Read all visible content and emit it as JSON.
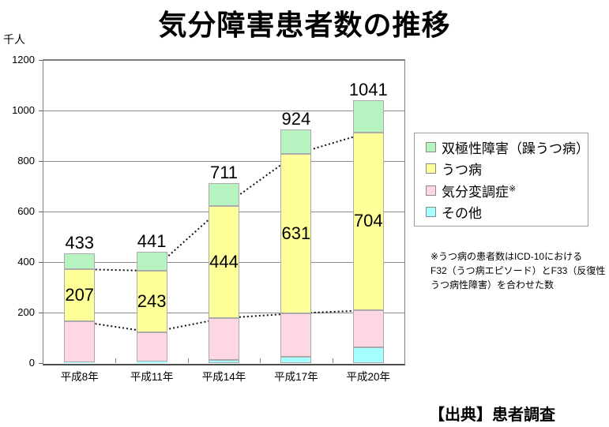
{
  "title": "気分障害患者数の推移",
  "y_axis": {
    "unit": "千人",
    "ticks": [
      0,
      200,
      400,
      600,
      800,
      1000,
      1200
    ],
    "max": 1200
  },
  "note": "※うつ病の患者数はICD-10における\nF32（うつ病エピソード）とF33（反復性\nうつ病性障害）を合わせた数",
  "source": "【出典】患者調査",
  "legend": [
    {
      "label": "双極性障害（躁うつ病）",
      "color": "#B7F3C0"
    },
    {
      "label": "うつ病",
      "color": "#FFFF99"
    },
    {
      "label": "気分変調症",
      "sup": "※",
      "color": "#FFD7E3"
    },
    {
      "label": "その他",
      "color": "#A5FEFF"
    }
  ],
  "chart_data": {
    "type": "bar",
    "stacked": true,
    "title": "気分障害患者数の推移",
    "ylabel": "千人",
    "ylim": [
      0,
      1200
    ],
    "grid": "horizontal",
    "legend_position": "right",
    "categories": [
      "平成8年",
      "平成11年",
      "平成14年",
      "平成17年",
      "平成20年"
    ],
    "series": [
      {
        "name": "その他",
        "color": "#A5FEFF",
        "values": [
          2,
          6,
          14,
          25,
          63
        ]
      },
      {
        "name": "気分変調症",
        "color": "#FFD7E3",
        "values": [
          163,
          116,
          164,
          172,
          146
        ]
      },
      {
        "name": "うつ病",
        "color": "#FFFF99",
        "values": [
          207,
          243,
          444,
          631,
          704
        ],
        "show_labels": true
      },
      {
        "name": "双極性障害（躁うつ病）",
        "color": "#B7F3C0",
        "values": [
          61,
          76,
          89,
          96,
          128
        ]
      }
    ],
    "totals": [
      433,
      441,
      711,
      924,
      1041
    ],
    "dotted_trend_lines": [
      {
        "name": "うつ病上端境界",
        "values": [
          372,
          365,
          622,
          828,
          913
        ]
      },
      {
        "name": "気分変調症上端境界",
        "values": [
          165,
          122,
          178,
          197,
          209
        ]
      }
    ],
    "colors": {
      "bar_border": "#ABABAB",
      "gridline": "#8C8C8C",
      "plot_border": "#808080",
      "baseline": "#4D4D4D",
      "dotted_line": "#111111"
    }
  }
}
